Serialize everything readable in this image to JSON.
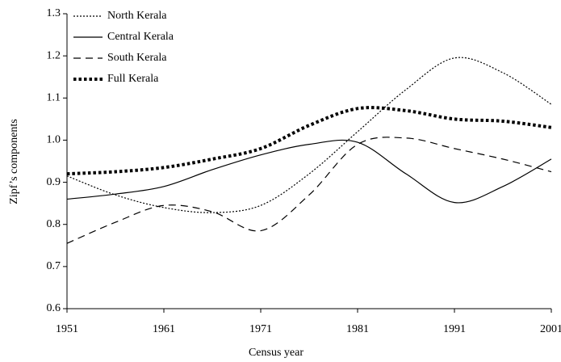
{
  "chart_data": {
    "type": "line",
    "x_label": "Census year",
    "y_label": "Zipf’s components",
    "x": [
      1951,
      1956,
      1961,
      1966,
      1971,
      1976,
      1981,
      1986,
      1991,
      1996,
      2001
    ],
    "series": [
      {
        "name": "North Kerala",
        "color": "#000000",
        "style": "dotted",
        "values": [
          0.915,
          0.87,
          0.84,
          0.828,
          0.845,
          0.92,
          1.02,
          1.12,
          1.195,
          1.16,
          1.085
        ]
      },
      {
        "name": "Central Kerala",
        "color": "#000000",
        "style": "solid",
        "values": [
          0.86,
          0.872,
          0.89,
          0.93,
          0.965,
          0.99,
          0.995,
          0.92,
          0.852,
          0.89,
          0.955
        ]
      },
      {
        "name": "South Kerala",
        "color": "#000000",
        "style": "dashed",
        "values": [
          0.755,
          0.805,
          0.845,
          0.83,
          0.785,
          0.87,
          0.99,
          1.005,
          0.98,
          0.955,
          0.925
        ]
      },
      {
        "name": "Full Kerala",
        "color": "#000000",
        "style": "thick-dotted",
        "values": [
          0.92,
          0.925,
          0.935,
          0.955,
          0.98,
          1.035,
          1.075,
          1.07,
          1.05,
          1.045,
          1.03
        ]
      }
    ],
    "xlim": [
      1951,
      2001
    ],
    "xticks": [
      1951,
      1961,
      1971,
      1981,
      1991,
      2001
    ],
    "ylim": [
      0.6,
      1.3
    ],
    "yticks": [
      0.6,
      0.7,
      0.8,
      0.9,
      {
        "value": 1.0,
        "label": "1.0"
      },
      1.1,
      1.2,
      1.3
    ],
    "grid": false,
    "legend": "top-left"
  }
}
